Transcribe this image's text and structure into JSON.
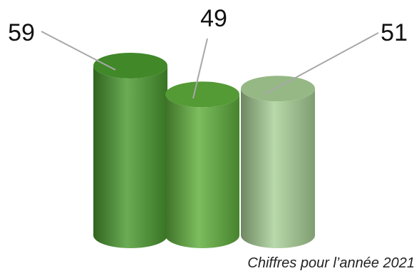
{
  "chart_data": {
    "type": "bar",
    "style": "3d-cylinder",
    "values": [
      59,
      49,
      51
    ],
    "data_labels": [
      "59",
      "49",
      "51"
    ],
    "colors": [
      "#4a9a2f",
      "#5faf3c",
      "#a9d197"
    ],
    "ylim": [
      0,
      59
    ],
    "grid": false,
    "legend": "none"
  },
  "footnote": "Chiffres pour l’année 2021"
}
